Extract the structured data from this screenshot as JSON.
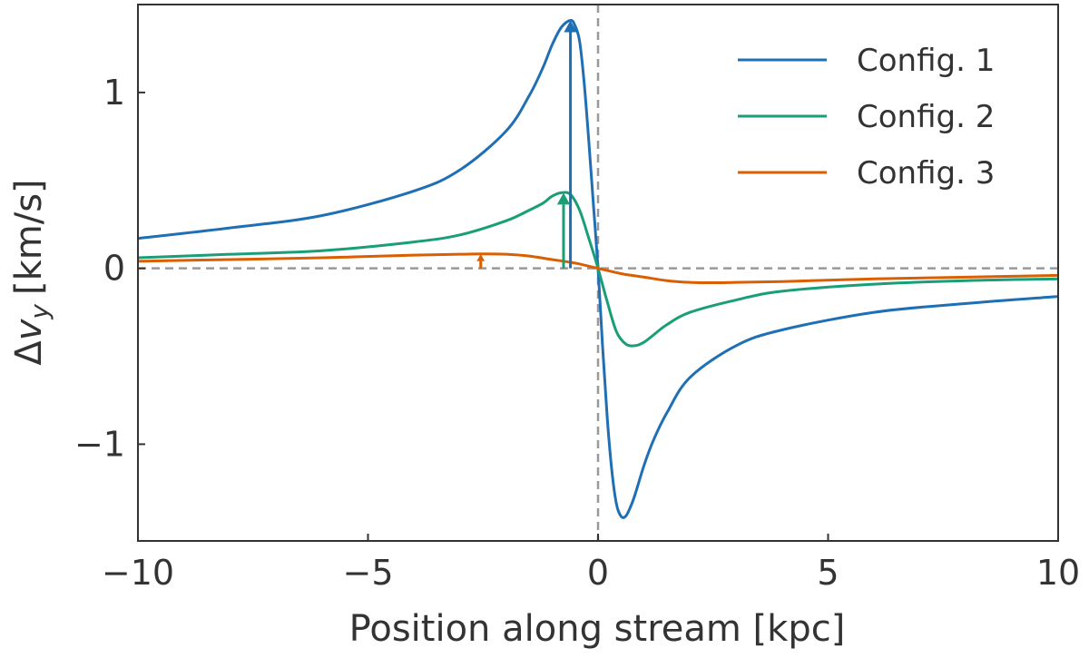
{
  "chart_data": {
    "type": "line",
    "title": "",
    "xlabel": "Position along stream [kpc]",
    "ylabel": "Δv_y [km/s]",
    "ylabel_parts": {
      "delta": "Δ",
      "v": "v",
      "sub": "y",
      "unit": "[km/s]"
    },
    "xlim": [
      -10,
      10
    ],
    "ylim": [
      -1.55,
      1.5
    ],
    "xticks": [
      -10,
      -5,
      0,
      5,
      10
    ],
    "xtick_labels": [
      "−10",
      "−5",
      "0",
      "5",
      "10"
    ],
    "yticks": [
      -1,
      0,
      1
    ],
    "ytick_labels": [
      "−1",
      "0",
      "1"
    ],
    "grid": false,
    "legend_position": "top-right",
    "reference_lines": {
      "horizontal_y": 0,
      "vertical_x": 0,
      "style": "dashed",
      "color": "#999999"
    },
    "series": [
      {
        "name": "Config. 1",
        "color": "#1f6fb4",
        "x": [
          -10,
          -8,
          -6,
          -4,
          -3,
          -2,
          -1.5,
          -1.2,
          -1.0,
          -0.8,
          -0.6,
          -0.5,
          -0.4,
          -0.3,
          -0.2,
          -0.1,
          0,
          0.1,
          0.2,
          0.3,
          0.4,
          0.5,
          0.6,
          0.7,
          0.8,
          1.0,
          1.2,
          1.5,
          2,
          3,
          4,
          6,
          8,
          10
        ],
        "y": [
          0.17,
          0.23,
          0.3,
          0.44,
          0.56,
          0.78,
          0.98,
          1.14,
          1.27,
          1.37,
          1.41,
          1.38,
          1.29,
          1.05,
          0.72,
          0.36,
          0.0,
          -0.45,
          -0.85,
          -1.15,
          -1.34,
          -1.41,
          -1.41,
          -1.36,
          -1.29,
          -1.12,
          -0.98,
          -0.82,
          -0.62,
          -0.44,
          -0.35,
          -0.25,
          -0.2,
          -0.16
        ]
      },
      {
        "name": "Config. 2",
        "color": "#1a9e77",
        "x": [
          -10,
          -8,
          -6,
          -4,
          -3,
          -2,
          -1.5,
          -1.2,
          -1.0,
          -0.8,
          -0.6,
          -0.4,
          -0.2,
          0,
          0.2,
          0.4,
          0.6,
          0.8,
          1.0,
          1.2,
          1.5,
          2,
          3,
          4,
          6,
          8,
          10
        ],
        "y": [
          0.06,
          0.08,
          0.1,
          0.15,
          0.19,
          0.27,
          0.33,
          0.37,
          0.41,
          0.43,
          0.42,
          0.33,
          0.17,
          0.0,
          -0.19,
          -0.36,
          -0.43,
          -0.44,
          -0.42,
          -0.38,
          -0.32,
          -0.25,
          -0.18,
          -0.13,
          -0.09,
          -0.07,
          -0.06
        ]
      },
      {
        "name": "Config. 3",
        "color": "#d95f02",
        "x": [
          -10,
          -8,
          -6,
          -4,
          -3,
          -2.5,
          -2,
          -1.5,
          -1,
          -0.5,
          0,
          0.5,
          1,
          1.5,
          2,
          2.5,
          3,
          4,
          6,
          8,
          10
        ],
        "y": [
          0.04,
          0.05,
          0.06,
          0.075,
          0.08,
          0.082,
          0.08,
          0.07,
          0.05,
          0.03,
          0.0,
          -0.03,
          -0.05,
          -0.07,
          -0.08,
          -0.082,
          -0.08,
          -0.075,
          -0.06,
          -0.05,
          -0.04
        ]
      }
    ],
    "arrows": [
      {
        "series": "Config. 1",
        "x": -0.6,
        "y_from": 0,
        "y_to": 1.41,
        "color": "#1f6fb4"
      },
      {
        "series": "Config. 2",
        "x": -0.75,
        "y_from": 0,
        "y_to": 0.43,
        "color": "#1a9e77"
      },
      {
        "series": "Config. 3",
        "x": -2.55,
        "y_from": 0,
        "y_to": 0.082,
        "color": "#d95f02"
      }
    ]
  }
}
